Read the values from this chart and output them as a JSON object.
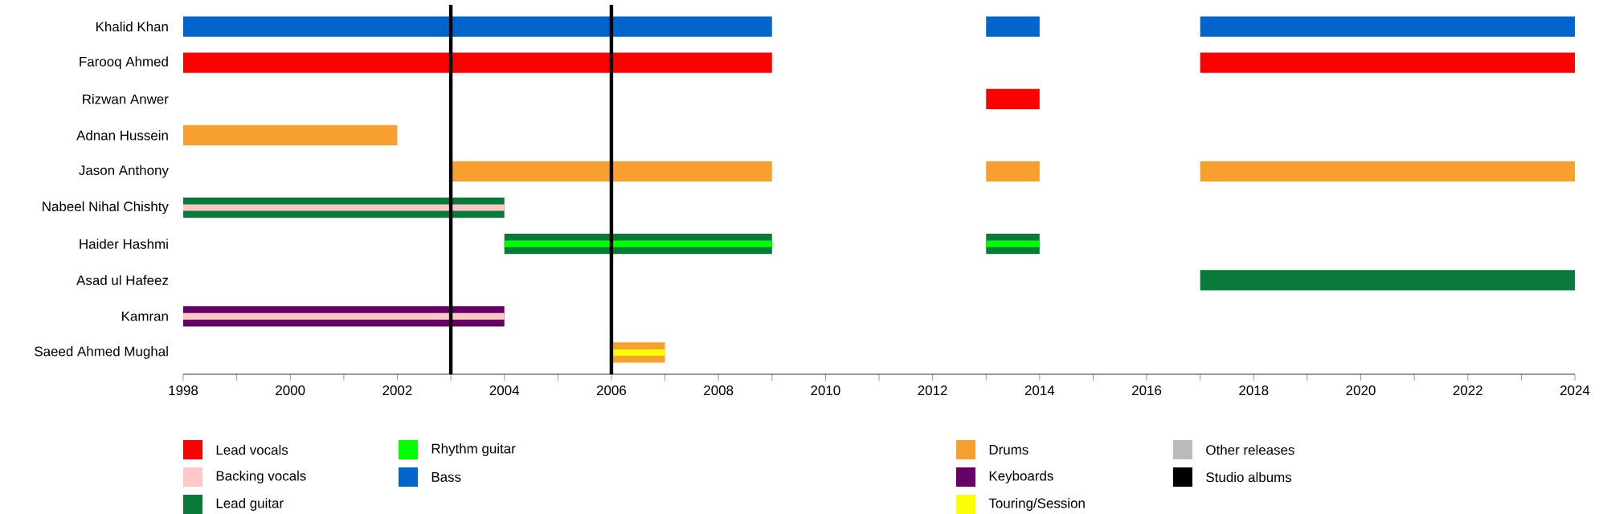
{
  "chart_data": {
    "type": "bar",
    "orientation": "horizontal",
    "categories": [
      "Khalid Khan",
      "Farooq Ahmed",
      "Rizwan Anwer",
      "Adnan Hussein",
      "Jason Anthony",
      "Nabeel Nihal Chishty",
      "Haider Hashmi",
      "Asad ul Hafeez",
      "Kamran",
      "Saeed Ahmed Mughal"
    ],
    "series": [
      {
        "name": "Lead vocals",
        "color": "#ff0000",
        "base": [
          null,
          1998,
          2013,
          null,
          null,
          null,
          null,
          null,
          null,
          null
        ],
        "values": [
          null,
          11,
          1,
          null,
          null,
          null,
          null,
          null,
          null,
          null
        ]
      },
      {
        "name": "Backing vocals",
        "color": "#ffc8c8",
        "base": [
          null,
          null,
          null,
          null,
          null,
          null,
          null,
          null,
          null,
          null
        ],
        "values": [
          null,
          null,
          null,
          null,
          null,
          null,
          null,
          null,
          null,
          null
        ]
      },
      {
        "name": "Lead guitar",
        "color": "#0a7a3a",
        "base": [
          null,
          null,
          null,
          null,
          null,
          1998,
          2004,
          2017,
          null,
          null
        ],
        "values": [
          null,
          null,
          null,
          null,
          null,
          6,
          5,
          7,
          null,
          null
        ]
      },
      {
        "name": "Rhythm guitar",
        "color": "#00ff00",
        "base": [
          null,
          null,
          null,
          null,
          null,
          null,
          2004,
          null,
          null,
          null
        ],
        "values": [
          null,
          null,
          null,
          null,
          null,
          null,
          5,
          null,
          null,
          null
        ]
      },
      {
        "name": "Bass",
        "color": "#0066cc",
        "base": [
          1998,
          null,
          null,
          null,
          null,
          null,
          null,
          null,
          null,
          null
        ],
        "values": [
          11,
          null,
          null,
          null,
          null,
          null,
          null,
          null,
          null,
          null
        ]
      },
      {
        "name": "Drums",
        "color": "#f7a030",
        "base": [
          null,
          null,
          null,
          1998,
          2003,
          null,
          null,
          null,
          null,
          2006
        ],
        "values": [
          null,
          null,
          null,
          4,
          6,
          null,
          null,
          null,
          null,
          1
        ]
      },
      {
        "name": "Keyboards",
        "color": "#660066",
        "base": [
          null,
          null,
          null,
          null,
          null,
          null,
          null,
          null,
          1998,
          null
        ],
        "values": [
          null,
          null,
          null,
          null,
          null,
          null,
          null,
          null,
          6,
          null
        ]
      },
      {
        "name": "Touring/Session",
        "color": "#ffff00",
        "base": [
          null,
          null,
          null,
          null,
          null,
          null,
          null,
          null,
          null,
          2006
        ],
        "values": [
          null,
          null,
          null,
          null,
          null,
          null,
          null,
          null,
          null,
          1
        ]
      },
      {
        "name": "Other releases",
        "color": "#bbbbbb",
        "base": [
          null,
          null,
          null,
          null,
          null,
          null,
          null,
          null,
          null,
          null
        ],
        "values": [
          null,
          null,
          null,
          null,
          null,
          null,
          null,
          null,
          null,
          null
        ]
      },
      {
        "color": "#0066cc",
        "base": [
          2013,
          null,
          null,
          null,
          null,
          null,
          null,
          null,
          null,
          null
        ],
        "values": [
          1,
          null,
          null,
          null,
          null,
          null,
          null,
          null,
          null,
          null
        ]
      },
      {
        "color": "#0066cc",
        "base": [
          2017,
          null,
          null,
          null,
          null,
          null,
          null,
          null,
          null,
          null
        ],
        "values": [
          7,
          null,
          null,
          null,
          null,
          null,
          null,
          null,
          null,
          null
        ]
      },
      {
        "color": "#ff0000",
        "base": [
          null,
          2017,
          null,
          null,
          null,
          null,
          null,
          null,
          null,
          null
        ],
        "values": [
          null,
          7,
          null,
          null,
          null,
          null,
          null,
          null,
          null,
          null
        ]
      },
      {
        "color": "#f7a030",
        "base": [
          null,
          null,
          null,
          null,
          2013,
          null,
          null,
          null,
          null,
          null
        ],
        "values": [
          null,
          null,
          null,
          null,
          1,
          null,
          null,
          null,
          null,
          null
        ]
      },
      {
        "color": "#f7a030",
        "base": [
          null,
          null,
          null,
          null,
          2017,
          null,
          null,
          null,
          null,
          null
        ],
        "values": [
          null,
          null,
          null,
          null,
          7,
          null,
          null,
          null,
          null,
          null
        ]
      },
      {
        "color": "#0a7a3a",
        "base": [
          null,
          null,
          null,
          null,
          null,
          null,
          2013,
          null,
          null,
          null
        ],
        "values": [
          null,
          null,
          null,
          null,
          null,
          null,
          1,
          null,
          null,
          null
        ]
      },
      {
        "color": "#00ff00",
        "base": [
          null,
          null,
          null,
          null,
          null,
          null,
          2013,
          null,
          null,
          null
        ],
        "values": [
          null,
          null,
          null,
          null,
          null,
          null,
          1,
          null,
          null,
          null
        ]
      },
      {
        "color": "#ffc8c8",
        "base": [
          null,
          null,
          null,
          null,
          null,
          1998,
          null,
          null,
          1998,
          null
        ],
        "values": [
          null,
          null,
          null,
          null,
          null,
          6,
          null,
          null,
          6,
          null
        ]
      }
    ],
    "xlim": [
      1998,
      2024
    ],
    "xticks": [
      1998,
      {
        "value": 1999,
        "label": null
      },
      2000,
      {
        "value": 2001,
        "label": null
      },
      2002,
      {
        "value": 2003,
        "label": null
      },
      2004,
      {
        "value": 2005,
        "label": null
      },
      2006,
      {
        "value": 2007,
        "label": null
      },
      2008,
      {
        "value": 2009,
        "label": null
      },
      2010,
      {
        "value": 2011,
        "label": null
      },
      2012,
      {
        "value": 2013,
        "label": null
      },
      2014,
      {
        "value": 2015,
        "label": null
      },
      2016,
      {
        "value": 2017,
        "label": null
      },
      2018,
      {
        "value": 2019,
        "label": null
      },
      2020,
      {
        "value": 2021,
        "label": null
      },
      2022,
      {
        "value": 2023,
        "label": null
      },
      2024
    ],
    "ref_lines": [
      {
        "axis": "x",
        "value": 2003,
        "label": "Studio albums",
        "color": "#000000"
      },
      {
        "axis": "x",
        "value": 2006,
        "color": "#000000"
      }
    ],
    "legend": "bottom"
  }
}
